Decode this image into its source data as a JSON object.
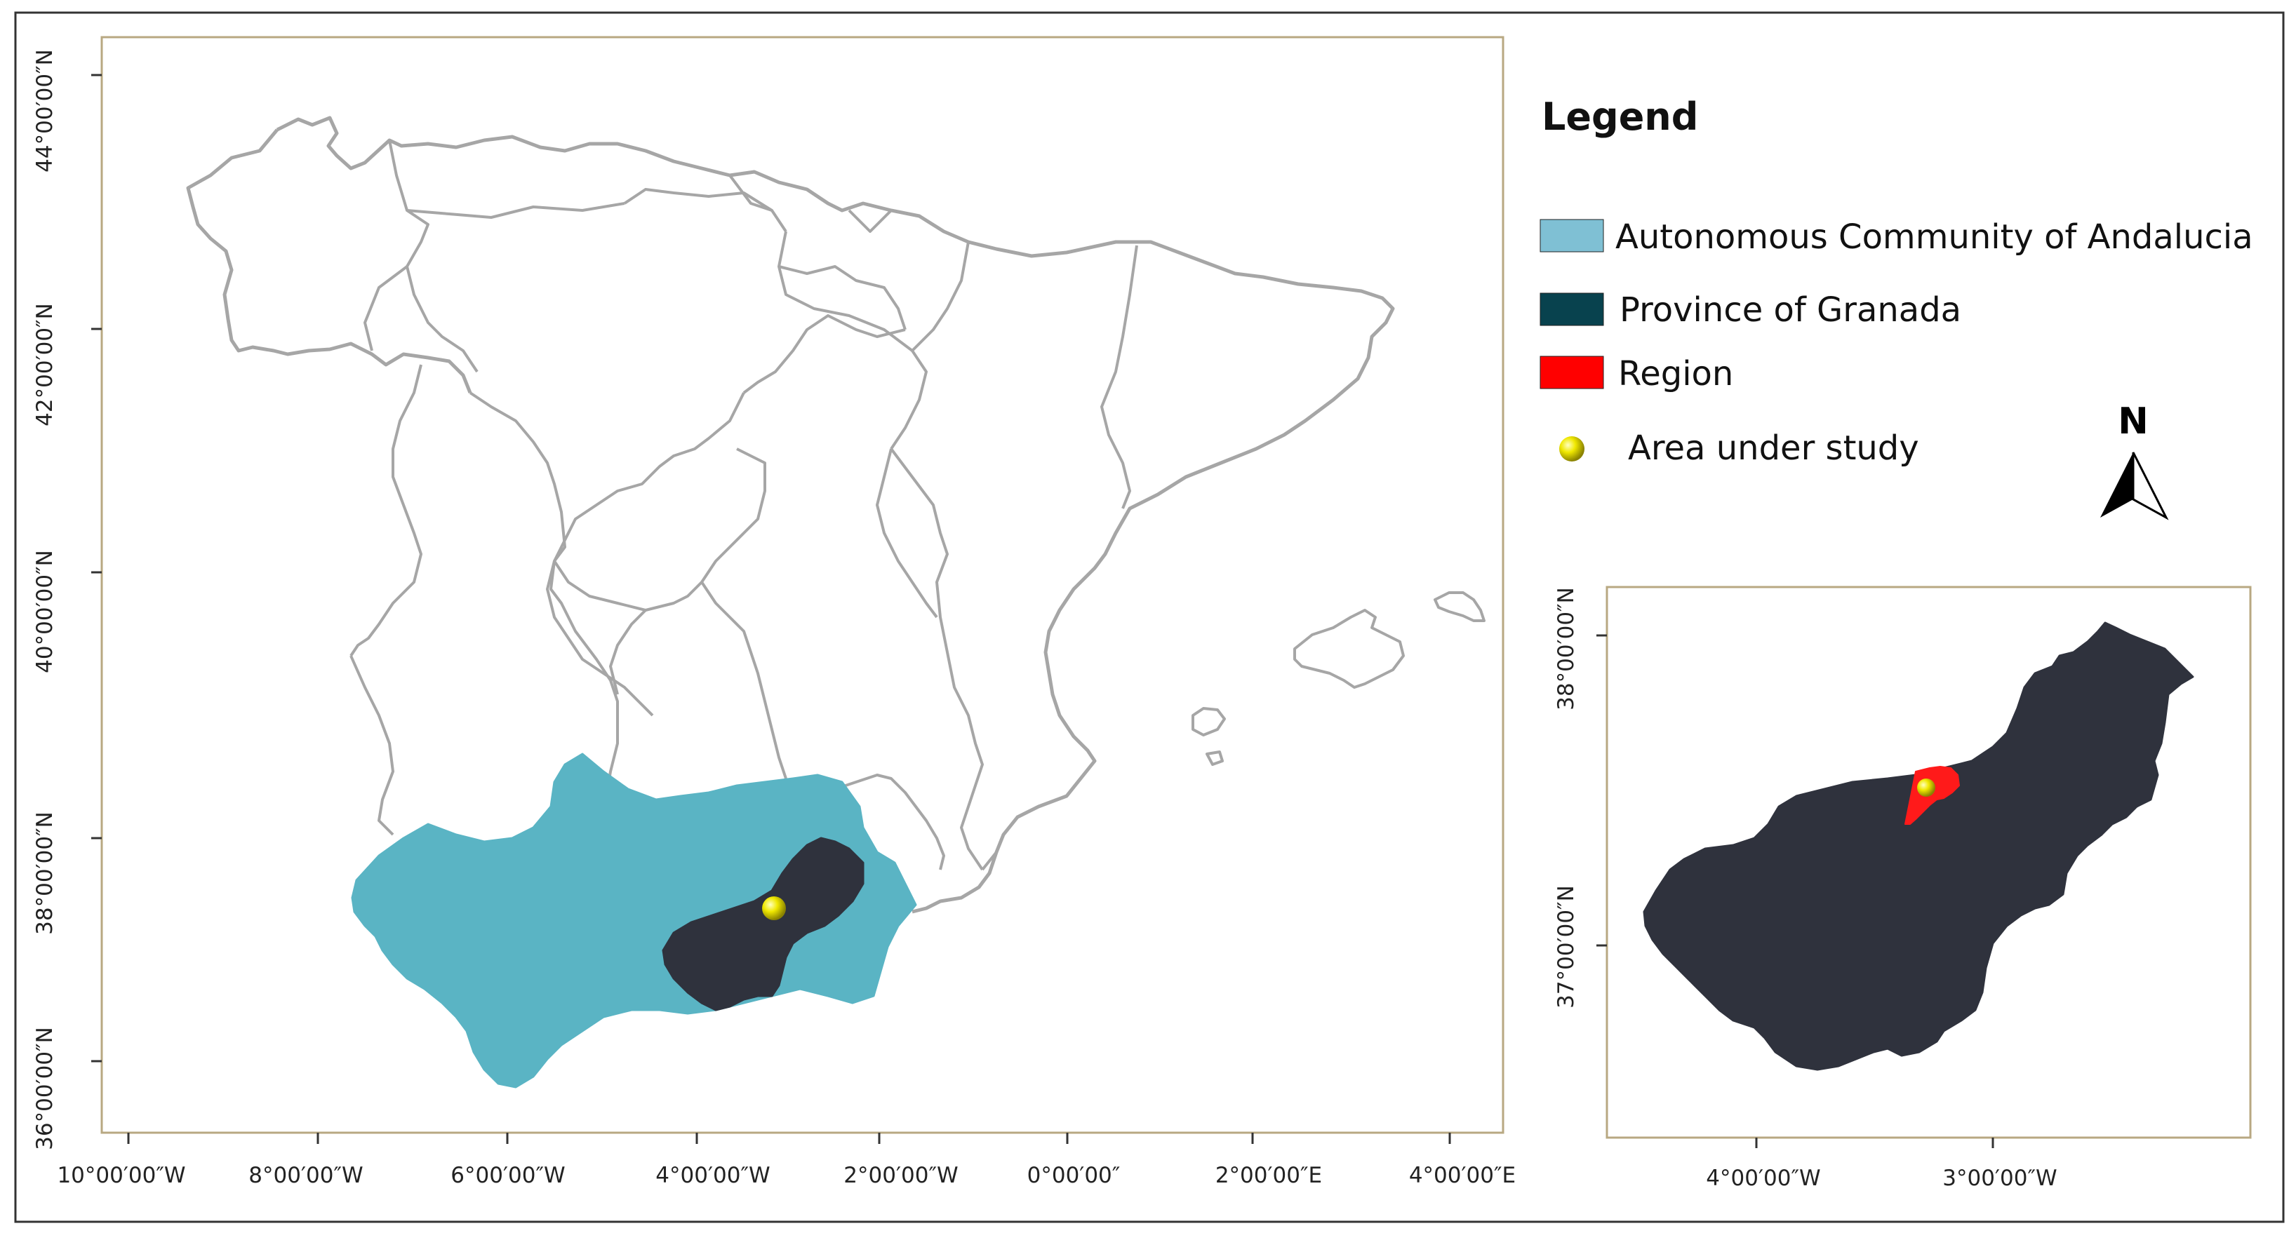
{
  "main_map": {
    "y_ticks": [
      "44°00′00″N",
      "42°00′00″N",
      "40°00′00″N",
      "38°00′00″N",
      "36°00′00″N"
    ],
    "x_ticks": [
      "10°00′00″W",
      "8°00′00″W",
      "6°00′00″W",
      "4°00′00″W",
      "2°00′00″W",
      "0°00′00″",
      "2°00′00″E",
      "4°00′00″E"
    ]
  },
  "legend": {
    "title": "Legend",
    "items": [
      {
        "label": "Autonomous Community of Andalucia",
        "color": "#7fc0d4"
      },
      {
        "label": "Province of Granada",
        "color": "#08424e"
      },
      {
        "label": "Region",
        "color": "#ff0000"
      },
      {
        "label": "Area under study",
        "color": "#e6e000"
      }
    ]
  },
  "north_arrow": {
    "label": "N"
  },
  "inset_map": {
    "y_ticks": [
      "38°00′00″N",
      "37°00′00″N"
    ],
    "x_ticks": [
      "4°00′00″W",
      "3°00′00″W"
    ]
  },
  "colors": {
    "andalucia_fill": "#5ab4c4",
    "granada_fill": "#2f323d",
    "region_fill": "#ff1a1a",
    "study_point": "#e6e000",
    "frame": "#b8a882",
    "borders": "#a6a6a6"
  }
}
